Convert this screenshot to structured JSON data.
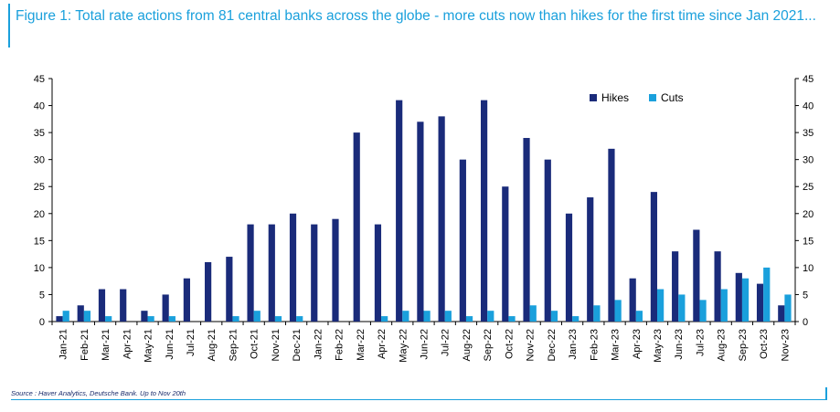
{
  "title": "Figure 1: Total rate actions from 81 central banks across the globe - more cuts now than hikes for the first time since Jan 2021...",
  "source": "Source : Haver Analytics, Deutsche Bank. Up to Nov 20th",
  "colors": {
    "hikes": "#1a2b7a",
    "cuts": "#1aa0dc",
    "accent": "#1aa0dc"
  },
  "chart_data": {
    "type": "bar",
    "categories": [
      "Jan-21",
      "Feb-21",
      "Mar-21",
      "Apr-21",
      "May-21",
      "Jun-21",
      "Jul-21",
      "Aug-21",
      "Sep-21",
      "Oct-21",
      "Nov-21",
      "Dec-21",
      "Jan-22",
      "Feb-22",
      "Mar-22",
      "Apr-22",
      "May-22",
      "Jun-22",
      "Jul-22",
      "Aug-22",
      "Sep-22",
      "Oct-22",
      "Nov-22",
      "Dec-22",
      "Jan-23",
      "Feb-23",
      "Mar-23",
      "Apr-23",
      "May-23",
      "Jun-23",
      "Jul-23",
      "Aug-23",
      "Sep-23",
      "Oct-23",
      "Nov-23"
    ],
    "series": [
      {
        "name": "Hikes",
        "values": [
          1,
          3,
          6,
          6,
          2,
          5,
          8,
          11,
          12,
          18,
          18,
          20,
          18,
          19,
          35,
          18,
          41,
          37,
          38,
          30,
          41,
          25,
          34,
          30,
          20,
          23,
          32,
          8,
          24,
          13,
          17,
          13,
          9,
          7,
          3
        ]
      },
      {
        "name": "Cuts",
        "values": [
          2,
          2,
          1,
          0,
          1,
          1,
          0,
          0,
          1,
          2,
          1,
          1,
          0,
          0,
          0,
          1,
          2,
          2,
          2,
          1,
          2,
          1,
          3,
          2,
          1,
          3,
          4,
          2,
          6,
          5,
          4,
          6,
          8,
          10,
          5
        ]
      }
    ],
    "ylim": [
      0,
      45
    ],
    "yticks": [
      "0",
      "5",
      "10",
      "15",
      "20",
      "25",
      "30",
      "35",
      "40",
      "45"
    ],
    "legend_position": "top-right",
    "grid": false,
    "dual_axis": true
  }
}
